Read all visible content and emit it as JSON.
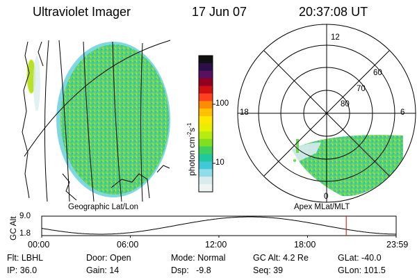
{
  "header": {
    "instrument": "Ultraviolet Imager",
    "date": "17 Jun 07",
    "time": "20:37:08 UT"
  },
  "geo_panel": {
    "caption": "Geographic Lat/Lon"
  },
  "polar_panel": {
    "caption": "Apex MLat/MLT",
    "mlt_labels": [
      "12",
      "18",
      "6",
      "0"
    ],
    "lat_labels": [
      "60",
      "70",
      "80"
    ]
  },
  "colorbar": {
    "unit_label": "photon cm",
    "unit_exp1": "-2",
    "unit_mid": "s",
    "unit_exp2": "-1",
    "ticks": [
      "100",
      "10"
    ],
    "colors": [
      "#111111",
      "#2a0f4a",
      "#5a1060",
      "#900020",
      "#d01010",
      "#ff4020",
      "#ff8c00",
      "#ffc000",
      "#ffe800",
      "#e8f000",
      "#b8ec10",
      "#80e020",
      "#40d060",
      "#20c8a0",
      "#40c8d8",
      "#90dce8",
      "#d8ecf0",
      "#eef4f4"
    ]
  },
  "altitude_plot": {
    "ylabel": "GC Alt",
    "ytick_top": "9.0",
    "ytick_bottom": "1.8",
    "xticks": [
      "00:00",
      "06:00",
      "12:00",
      "18:00",
      "23:59"
    ],
    "xrange_hours": [
      0,
      24
    ],
    "current_hour": 20.62,
    "line_color": "#dd0000"
  },
  "status": {
    "flt": "Flt: LBHL",
    "door": "Door: Open",
    "mode": "Mode: Normal",
    "gc_alt": "GC Alt: 4.2 Re",
    "glat": "GLat: -40.0",
    "ip": "IP: 36.0",
    "gain": "Gain: 14",
    "dsp": "Dsp:   -9.8",
    "seq": "Seq: 39",
    "glon": "GLon: 101.5"
  }
}
